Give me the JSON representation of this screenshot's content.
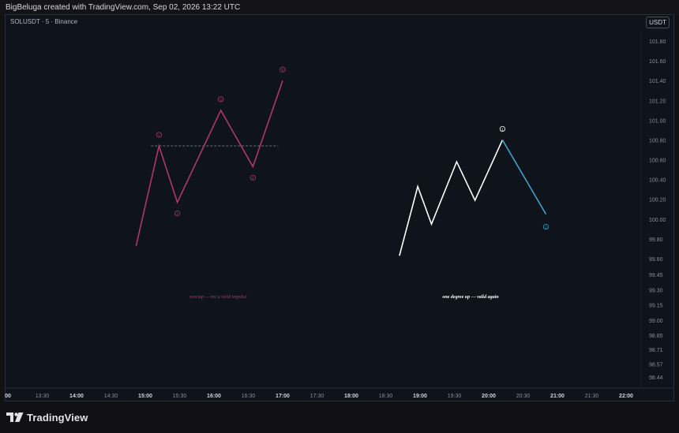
{
  "header": {
    "attribution": "BigBeluga created with TradingView.com, Sep 02, 2026 13:22 UTC"
  },
  "symbol": {
    "label": "SOLUSDT · 5 · Binance"
  },
  "currency_button": "USDT",
  "footer": {
    "logo_text": "TradingView"
  },
  "colors": {
    "background": "#0f131c",
    "invalid_wave": "#b0376b",
    "valid_wave": "#ffffff",
    "correction_wave": "#3ea0c4",
    "axis_text": "#8a8e99"
  },
  "chart_data": {
    "type": "line",
    "x_ticks": [
      "00",
      "13:30",
      "14:00",
      "14:30",
      "15:00",
      "15:30",
      "16:00",
      "16:30",
      "17:00",
      "17:30",
      "18:00",
      "18:30",
      "19:00",
      "19:30",
      "20:00",
      "20:30",
      "21:00",
      "21:30",
      "22:00"
    ],
    "x_ticks_bold": [
      "14:00",
      "15:00",
      "16:00",
      "17:00",
      "18:00",
      "19:00",
      "20:00",
      "21:00",
      "22:00"
    ],
    "y_ticks": [
      "101.80",
      "101.60",
      "101.40",
      "101.20",
      "101.00",
      "100.80",
      "100.60",
      "100.40",
      "100.20",
      "100.00",
      "99.80",
      "99.60",
      "99.45",
      "99.30",
      "99.15",
      "99.00",
      "98.85",
      "98.71",
      "98.57",
      "98.44"
    ],
    "series": [
      {
        "color": "#b0376b",
        "points": [
          {
            "t": "14:52",
            "v": 99.73
          },
          {
            "t": "15:12",
            "v": 100.74
          },
          {
            "t": "15:28",
            "v": 100.17
          },
          {
            "t": "16:06",
            "v": 101.1
          },
          {
            "t": "16:34",
            "v": 100.53
          },
          {
            "t": "17:00",
            "v": 101.4
          }
        ],
        "wave_labels": [
          "1",
          "2",
          "3",
          "4",
          "5"
        ]
      },
      {
        "color": "#ffffff",
        "points": [
          {
            "t": "18:42",
            "v": 99.63
          },
          {
            "t": "18:58",
            "v": 100.33
          },
          {
            "t": "19:10",
            "v": 99.95
          },
          {
            "t": "19:32",
            "v": 100.58
          },
          {
            "t": "19:48",
            "v": 100.19
          },
          {
            "t": "20:12",
            "v": 100.8
          }
        ],
        "wave_labels": [
          "1"
        ]
      },
      {
        "color": "#3ea0c4",
        "points": [
          {
            "t": "20:12",
            "v": 100.8
          },
          {
            "t": "20:50",
            "v": 100.05
          }
        ],
        "wave_labels": [
          "2"
        ]
      }
    ],
    "overlap_line": {
      "t_start": "15:05",
      "t_end": "16:56",
      "v": 100.74
    },
    "annotations": [
      "overlap — not a valid impulse",
      "one degree up — valid again"
    ],
    "grid": false
  }
}
